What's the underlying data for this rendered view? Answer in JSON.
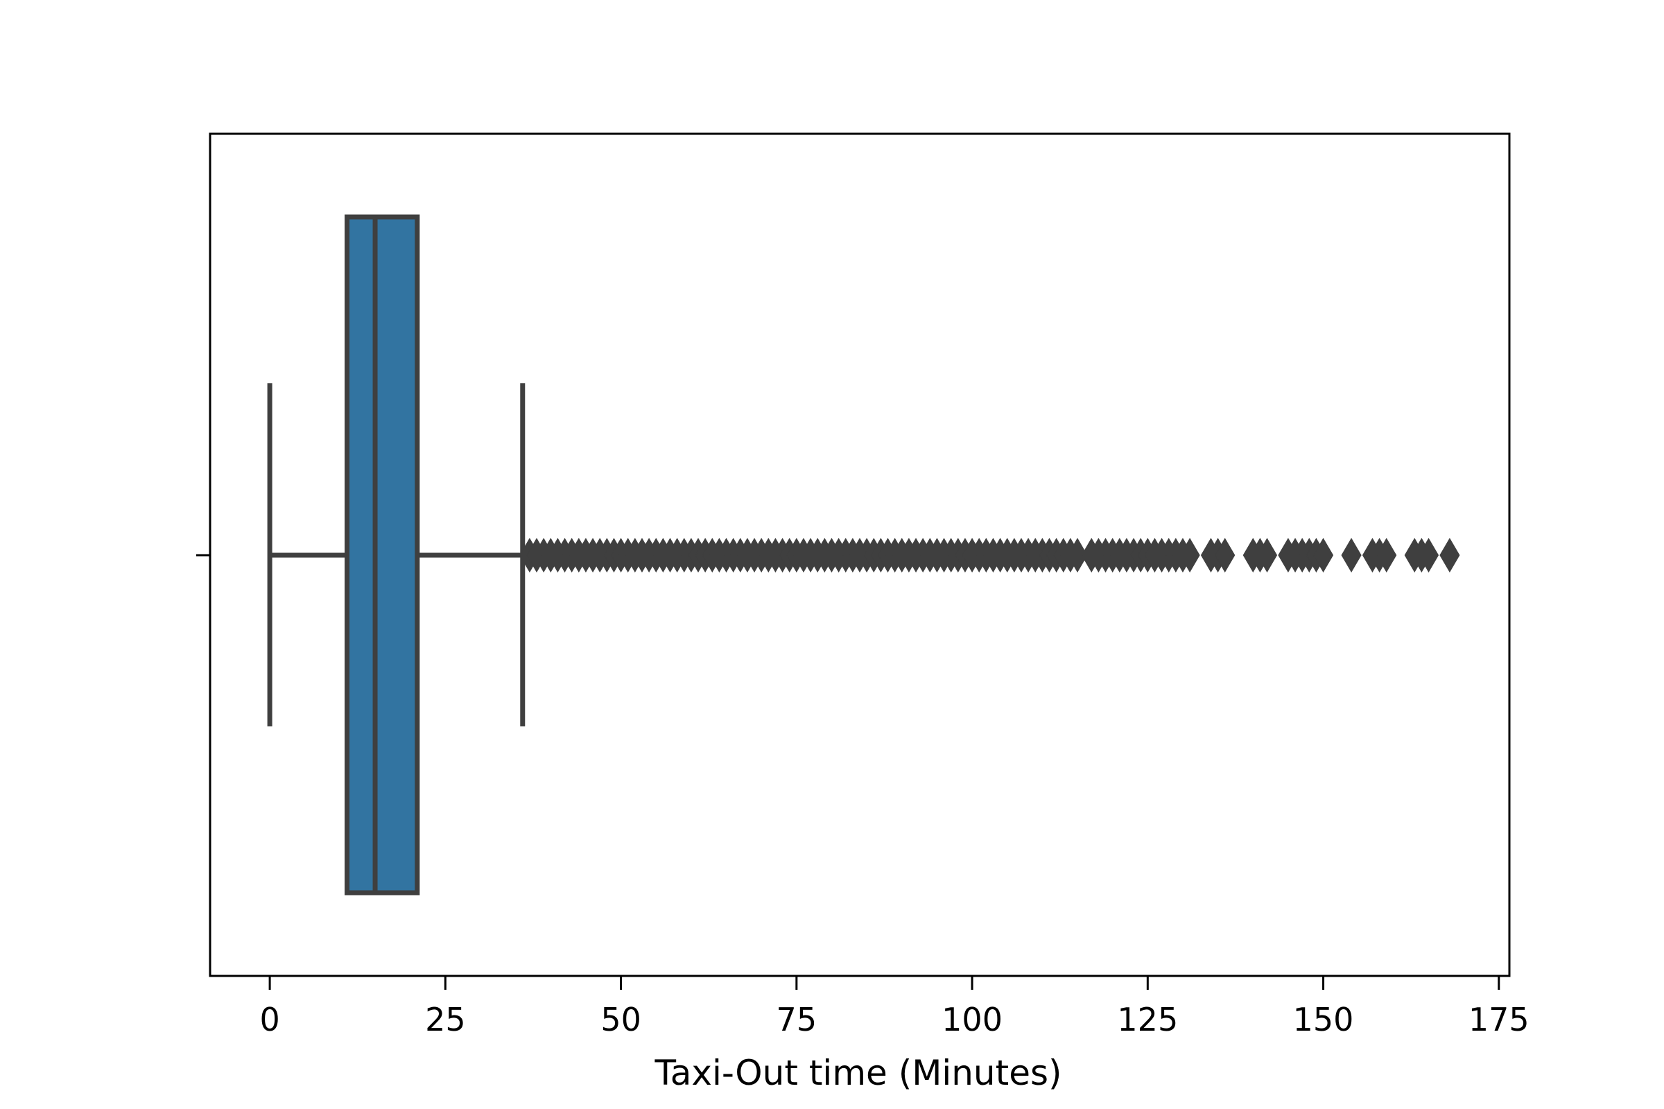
{
  "chart_data": {
    "type": "box",
    "orientation": "horizontal",
    "xlabel": "Taxi-Out time (Minutes)",
    "ylabel": "",
    "xlim": [
      -8.5,
      176.5
    ],
    "xticks": [
      0,
      25,
      50,
      75,
      100,
      125,
      150,
      175
    ],
    "xtick_labels": [
      "0",
      "25",
      "50",
      "75",
      "100",
      "125",
      "150",
      "175"
    ],
    "grid": false,
    "box": {
      "whisker_low": 0,
      "q1": 11,
      "median": 15,
      "q3": 21,
      "whisker_high": 36,
      "fill_color": "#3274a1",
      "line_color": "#3f3f3f"
    },
    "outliers": [
      37,
      38,
      39,
      40,
      41,
      42,
      43,
      44,
      45,
      46,
      47,
      48,
      49,
      50,
      51,
      52,
      53,
      54,
      55,
      56,
      57,
      58,
      59,
      60,
      61,
      62,
      63,
      64,
      65,
      66,
      67,
      68,
      69,
      70,
      71,
      72,
      73,
      74,
      75,
      76,
      77,
      78,
      79,
      80,
      81,
      82,
      83,
      84,
      85,
      86,
      87,
      88,
      89,
      90,
      91,
      92,
      93,
      94,
      95,
      96,
      97,
      98,
      99,
      100,
      101,
      102,
      103,
      104,
      105,
      106,
      107,
      108,
      109,
      110,
      111,
      112,
      113,
      114,
      115,
      117,
      118,
      119,
      120,
      121,
      122,
      123,
      124,
      125,
      126,
      127,
      128,
      129,
      130,
      131,
      134,
      135,
      136,
      140,
      141,
      142,
      145,
      146,
      147,
      148,
      149,
      150,
      154,
      157,
      158,
      159,
      163,
      164,
      165,
      168
    ]
  }
}
